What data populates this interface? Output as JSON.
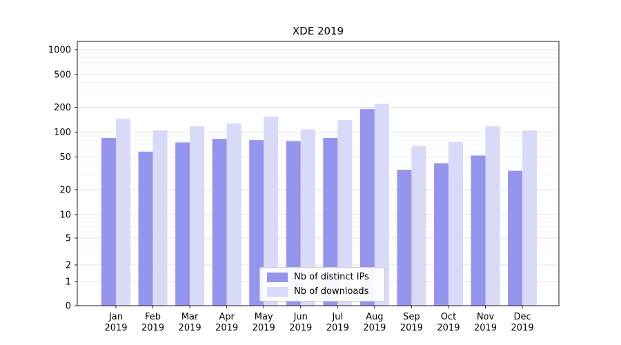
{
  "chart_data": {
    "type": "bar",
    "title": "XDE 2019",
    "yscale": "symlog",
    "grid": true,
    "legend_position": "lower center",
    "y_ticks": [
      0,
      1,
      2,
      5,
      10,
      20,
      50,
      100,
      200,
      500,
      1000
    ],
    "ylim": [
      0,
      1000
    ],
    "categories": [
      "Jan",
      "Feb",
      "Mar",
      "Apr",
      "May",
      "Jun",
      "Jul",
      "Aug",
      "Sep",
      "Oct",
      "Nov",
      "Dec"
    ],
    "x_sub_label": "2019",
    "xlabel": "",
    "ylabel": "",
    "series": [
      {
        "name": "Nb of distinct IPs",
        "color": "#9595ee",
        "values": [
          85,
          58,
          75,
          83,
          80,
          78,
          85,
          190,
          35,
          42,
          52,
          34
        ]
      },
      {
        "name": "Nb of downloads",
        "color": "#d9d9f8",
        "values": [
          145,
          105,
          118,
          128,
          155,
          108,
          140,
          220,
          68,
          76,
          118,
          105
        ]
      }
    ]
  }
}
